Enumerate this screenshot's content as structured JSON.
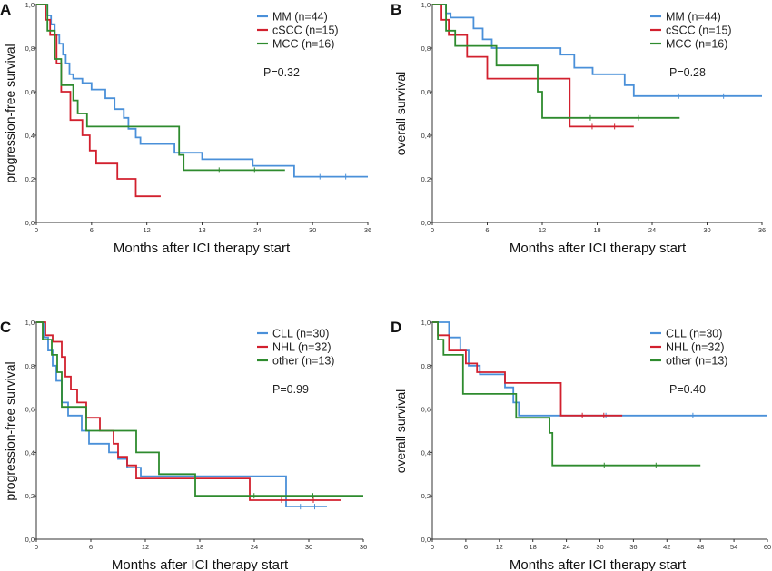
{
  "chart_data": [
    {
      "panel": "A",
      "type": "line",
      "xlabel": "Months after ICI therapy start",
      "ylabel": "progression-free survival",
      "xticks": [
        "0",
        "6",
        "12",
        "18",
        "24",
        "30",
        "36"
      ],
      "yticks": [
        "0,0",
        "0,2",
        "0,4",
        "0,6",
        "0,8",
        "1,0"
      ],
      "xlim": [
        0,
        36
      ],
      "ylim": [
        0,
        1
      ],
      "legend_position": "top-right",
      "pvalue": "P=0.32",
      "series": [
        {
          "name": "MM (n=44)",
          "color": "#4A90D9",
          "points": [
            [
              0,
              1
            ],
            [
              1.2,
              1
            ],
            [
              1.2,
              0.95
            ],
            [
              1.6,
              0.95
            ],
            [
              1.6,
              0.91
            ],
            [
              2,
              0.91
            ],
            [
              2,
              0.86
            ],
            [
              2.5,
              0.86
            ],
            [
              2.5,
              0.82
            ],
            [
              2.9,
              0.82
            ],
            [
              2.9,
              0.77
            ],
            [
              3.2,
              0.77
            ],
            [
              3.2,
              0.73
            ],
            [
              3.6,
              0.73
            ],
            [
              3.6,
              0.68
            ],
            [
              4,
              0.68
            ],
            [
              4,
              0.66
            ],
            [
              5,
              0.66
            ],
            [
              5,
              0.64
            ],
            [
              6,
              0.64
            ],
            [
              6,
              0.61
            ],
            [
              7.5,
              0.61
            ],
            [
              7.5,
              0.57
            ],
            [
              8.5,
              0.57
            ],
            [
              8.5,
              0.52
            ],
            [
              9.5,
              0.52
            ],
            [
              9.5,
              0.48
            ],
            [
              10,
              0.48
            ],
            [
              10,
              0.43
            ],
            [
              10.8,
              0.43
            ],
            [
              10.8,
              0.39
            ],
            [
              11.3,
              0.39
            ],
            [
              11.3,
              0.36
            ],
            [
              15,
              0.36
            ],
            [
              15,
              0.32
            ],
            [
              18,
              0.32
            ],
            [
              18,
              0.29
            ],
            [
              23.5,
              0.29
            ],
            [
              23.5,
              0.26
            ],
            [
              28,
              0.26
            ],
            [
              28,
              0.21
            ],
            [
              36,
              0.21
            ]
          ]
        },
        {
          "name": "cSCC (n=15)",
          "color": "#D2202E",
          "points": [
            [
              0,
              1
            ],
            [
              1,
              1
            ],
            [
              1,
              0.93
            ],
            [
              1.5,
              0.93
            ],
            [
              1.5,
              0.86
            ],
            [
              2.2,
              0.86
            ],
            [
              2.2,
              0.73
            ],
            [
              2.7,
              0.73
            ],
            [
              2.7,
              0.6
            ],
            [
              3.7,
              0.6
            ],
            [
              3.7,
              0.47
            ],
            [
              5,
              0.47
            ],
            [
              5,
              0.4
            ],
            [
              5.8,
              0.4
            ],
            [
              5.8,
              0.33
            ],
            [
              6.5,
              0.33
            ],
            [
              6.5,
              0.27
            ],
            [
              8.8,
              0.27
            ],
            [
              8.8,
              0.2
            ],
            [
              10.8,
              0.2
            ],
            [
              10.8,
              0.12
            ],
            [
              13.5,
              0.12
            ]
          ]
        },
        {
          "name": "MCC (n=16)",
          "color": "#2E8B2E",
          "points": [
            [
              0,
              1
            ],
            [
              1.2,
              1
            ],
            [
              1.2,
              0.88
            ],
            [
              2,
              0.88
            ],
            [
              2,
              0.75
            ],
            [
              2.7,
              0.75
            ],
            [
              2.7,
              0.63
            ],
            [
              4,
              0.63
            ],
            [
              4,
              0.56
            ],
            [
              4.5,
              0.56
            ],
            [
              4.5,
              0.5
            ],
            [
              5.5,
              0.5
            ],
            [
              5.5,
              0.44
            ],
            [
              15.5,
              0.44
            ],
            [
              15.5,
              0.31
            ],
            [
              16,
              0.31
            ],
            [
              16,
              0.24
            ],
            [
              27,
              0.24
            ]
          ]
        }
      ]
    },
    {
      "panel": "B",
      "type": "line",
      "xlabel": "Months after ICI therapy start",
      "ylabel": "overall survival",
      "xticks": [
        "0",
        "6",
        "12",
        "18",
        "24",
        "30",
        "36"
      ],
      "yticks": [
        "0,0",
        "0,2",
        "0,4",
        "0,6",
        "0,8",
        "1,0"
      ],
      "xlim": [
        0,
        36
      ],
      "ylim": [
        0,
        1
      ],
      "legend_position": "top-right",
      "pvalue": "P=0.28",
      "series": [
        {
          "name": "MM (n=44)",
          "color": "#4A90D9",
          "points": [
            [
              0,
              1
            ],
            [
              1.5,
              1
            ],
            [
              1.5,
              0.96
            ],
            [
              2,
              0.96
            ],
            [
              2,
              0.94
            ],
            [
              4.5,
              0.94
            ],
            [
              4.5,
              0.89
            ],
            [
              5.5,
              0.89
            ],
            [
              5.5,
              0.84
            ],
            [
              6.5,
              0.84
            ],
            [
              6.5,
              0.8
            ],
            [
              14,
              0.8
            ],
            [
              14,
              0.77
            ],
            [
              15.5,
              0.77
            ],
            [
              15.5,
              0.71
            ],
            [
              17.5,
              0.71
            ],
            [
              17.5,
              0.68
            ],
            [
              21,
              0.68
            ],
            [
              21,
              0.63
            ],
            [
              22,
              0.63
            ],
            [
              22,
              0.58
            ],
            [
              36,
              0.58
            ]
          ]
        },
        {
          "name": "cSCC (n=15)",
          "color": "#D2202E",
          "points": [
            [
              0,
              1
            ],
            [
              1,
              1
            ],
            [
              1,
              0.93
            ],
            [
              1.8,
              0.93
            ],
            [
              1.8,
              0.86
            ],
            [
              3.8,
              0.86
            ],
            [
              3.8,
              0.76
            ],
            [
              6,
              0.76
            ],
            [
              6,
              0.66
            ],
            [
              15,
              0.66
            ],
            [
              15,
              0.44
            ],
            [
              22,
              0.44
            ]
          ]
        },
        {
          "name": "MCC (n=16)",
          "color": "#2E8B2E",
          "points": [
            [
              0,
              1
            ],
            [
              1.5,
              1
            ],
            [
              1.5,
              0.88
            ],
            [
              2.5,
              0.88
            ],
            [
              2.5,
              0.81
            ],
            [
              7,
              0.81
            ],
            [
              7,
              0.72
            ],
            [
              11.5,
              0.72
            ],
            [
              11.5,
              0.6
            ],
            [
              12,
              0.6
            ],
            [
              12,
              0.48
            ],
            [
              27,
              0.48
            ]
          ]
        }
      ]
    },
    {
      "panel": "C",
      "type": "line",
      "xlabel": "Months after ICI therapy start",
      "ylabel": "progression-free survival",
      "xticks": [
        "0",
        "6",
        "12",
        "18",
        "24",
        "30",
        "36"
      ],
      "yticks": [
        "0,0",
        "0,2",
        "0,4",
        "0,6",
        "0,8",
        "1,0"
      ],
      "xlim": [
        0,
        36
      ],
      "ylim": [
        0,
        1
      ],
      "legend_position": "top-right",
      "pvalue": "P=0.99",
      "series": [
        {
          "name": "CLL (n=30)",
          "color": "#4A90D9",
          "points": [
            [
              0,
              1
            ],
            [
              0.8,
              1
            ],
            [
              0.8,
              0.93
            ],
            [
              1.3,
              0.93
            ],
            [
              1.3,
              0.87
            ],
            [
              1.8,
              0.87
            ],
            [
              1.8,
              0.8
            ],
            [
              2.2,
              0.8
            ],
            [
              2.2,
              0.73
            ],
            [
              2.8,
              0.73
            ],
            [
              2.8,
              0.63
            ],
            [
              3.5,
              0.63
            ],
            [
              3.5,
              0.57
            ],
            [
              5,
              0.57
            ],
            [
              5,
              0.5
            ],
            [
              5.8,
              0.5
            ],
            [
              5.8,
              0.44
            ],
            [
              8,
              0.44
            ],
            [
              8,
              0.4
            ],
            [
              9,
              0.4
            ],
            [
              9,
              0.37
            ],
            [
              10,
              0.37
            ],
            [
              10,
              0.33
            ],
            [
              11.5,
              0.33
            ],
            [
              11.5,
              0.29
            ],
            [
              27.5,
              0.29
            ],
            [
              27.5,
              0.15
            ],
            [
              32,
              0.15
            ]
          ]
        },
        {
          "name": "NHL (n=32)",
          "color": "#D2202E",
          "points": [
            [
              0,
              1
            ],
            [
              1,
              1
            ],
            [
              1,
              0.94
            ],
            [
              1.8,
              0.94
            ],
            [
              1.8,
              0.91
            ],
            [
              2.8,
              0.91
            ],
            [
              2.8,
              0.84
            ],
            [
              3.2,
              0.84
            ],
            [
              3.2,
              0.75
            ],
            [
              3.8,
              0.75
            ],
            [
              3.8,
              0.69
            ],
            [
              4.5,
              0.69
            ],
            [
              4.5,
              0.63
            ],
            [
              5.5,
              0.63
            ],
            [
              5.5,
              0.56
            ],
            [
              7,
              0.56
            ],
            [
              7,
              0.5
            ],
            [
              8.5,
              0.5
            ],
            [
              8.5,
              0.44
            ],
            [
              9,
              0.44
            ],
            [
              9,
              0.38
            ],
            [
              10,
              0.38
            ],
            [
              10,
              0.34
            ],
            [
              11,
              0.34
            ],
            [
              11,
              0.28
            ],
            [
              23.5,
              0.28
            ],
            [
              23.5,
              0.18
            ],
            [
              33.5,
              0.18
            ]
          ]
        },
        {
          "name": "other (n=13)",
          "color": "#2E8B2E",
          "points": [
            [
              0,
              1
            ],
            [
              0.7,
              1
            ],
            [
              0.7,
              0.92
            ],
            [
              1.7,
              0.92
            ],
            [
              1.7,
              0.85
            ],
            [
              2.3,
              0.85
            ],
            [
              2.3,
              0.77
            ],
            [
              2.8,
              0.77
            ],
            [
              2.8,
              0.61
            ],
            [
              5.5,
              0.61
            ],
            [
              5.5,
              0.5
            ],
            [
              11,
              0.5
            ],
            [
              11,
              0.4
            ],
            [
              13.5,
              0.4
            ],
            [
              13.5,
              0.3
            ],
            [
              17.5,
              0.3
            ],
            [
              17.5,
              0.2
            ],
            [
              36,
              0.2
            ]
          ]
        }
      ]
    },
    {
      "panel": "D",
      "type": "line",
      "xlabel": "Months after ICI therapy start",
      "ylabel": "overall survival",
      "xticks": [
        "0",
        "6",
        "12",
        "18",
        "24",
        "30",
        "36",
        "42",
        "48",
        "54",
        "60"
      ],
      "yticks": [
        "0,0",
        "0,2",
        "0,4",
        "0,6",
        "0,8",
        "1,0"
      ],
      "xlim": [
        0,
        60
      ],
      "ylim": [
        0,
        1
      ],
      "legend_position": "top-right",
      "pvalue": "P=0.40",
      "series": [
        {
          "name": "CLL (n=30)",
          "color": "#4A90D9",
          "points": [
            [
              0,
              1
            ],
            [
              3,
              1
            ],
            [
              3,
              0.93
            ],
            [
              5,
              0.93
            ],
            [
              5,
              0.87
            ],
            [
              6.5,
              0.87
            ],
            [
              6.5,
              0.8
            ],
            [
              8.5,
              0.8
            ],
            [
              8.5,
              0.76
            ],
            [
              13,
              0.76
            ],
            [
              13,
              0.7
            ],
            [
              14.5,
              0.7
            ],
            [
              14.5,
              0.63
            ],
            [
              15.5,
              0.63
            ],
            [
              15.5,
              0.57
            ],
            [
              60,
              0.57
            ]
          ]
        },
        {
          "name": "NHL (n=32)",
          "color": "#D2202E",
          "points": [
            [
              0,
              1
            ],
            [
              1,
              1
            ],
            [
              1,
              0.94
            ],
            [
              3,
              0.94
            ],
            [
              3,
              0.87
            ],
            [
              6,
              0.87
            ],
            [
              6,
              0.81
            ],
            [
              8,
              0.81
            ],
            [
              8,
              0.77
            ],
            [
              13,
              0.77
            ],
            [
              13,
              0.72
            ],
            [
              23,
              0.72
            ],
            [
              23,
              0.57
            ],
            [
              34,
              0.57
            ]
          ]
        },
        {
          "name": "other (n=13)",
          "color": "#2E8B2E",
          "points": [
            [
              0,
              1
            ],
            [
              1,
              1
            ],
            [
              1,
              0.92
            ],
            [
              2,
              0.92
            ],
            [
              2,
              0.85
            ],
            [
              5.5,
              0.85
            ],
            [
              5.5,
              0.67
            ],
            [
              15,
              0.67
            ],
            [
              15,
              0.56
            ],
            [
              21,
              0.56
            ],
            [
              21,
              0.49
            ],
            [
              21.5,
              0.49
            ],
            [
              21.5,
              0.34
            ],
            [
              48,
              0.34
            ]
          ]
        }
      ]
    }
  ]
}
